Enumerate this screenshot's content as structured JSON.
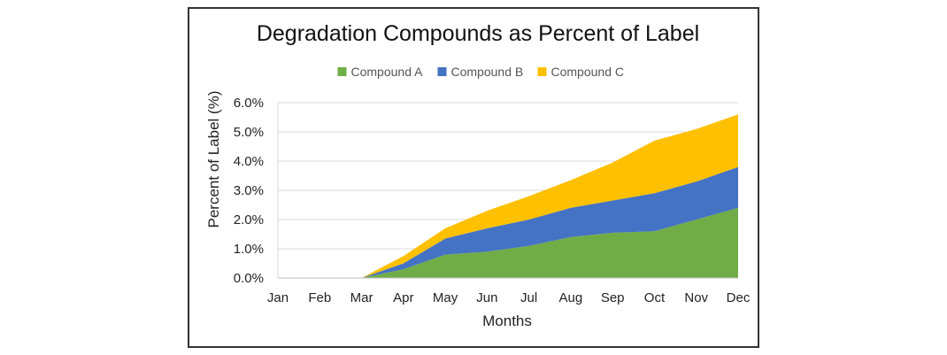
{
  "chart_data": {
    "type": "area",
    "stacked": true,
    "title": "Degradation Compounds as Percent of Label",
    "xlabel": "Months",
    "ylabel": "Percent of Label (%)",
    "categories": [
      "Jan",
      "Feb",
      "Mar",
      "Apr",
      "May",
      "Jun",
      "Jul",
      "Aug",
      "Sep",
      "Oct",
      "Nov",
      "Dec"
    ],
    "yticks": [
      "0.0%",
      "1.0%",
      "2.0%",
      "3.0%",
      "4.0%",
      "5.0%",
      "6.0%"
    ],
    "ylim": [
      0,
      6
    ],
    "legend_position": "top",
    "grid": true,
    "series": [
      {
        "name": "Compound A",
        "color": "#70AD47",
        "values": [
          0,
          0,
          0,
          0.3,
          0.8,
          0.9,
          1.1,
          1.4,
          1.55,
          1.6,
          2.0,
          2.4
        ]
      },
      {
        "name": "Compound B",
        "color": "#4472C4",
        "values": [
          0,
          0,
          0,
          0.2,
          0.55,
          0.8,
          0.9,
          1.0,
          1.1,
          1.3,
          1.3,
          1.4
        ]
      },
      {
        "name": "Compound C",
        "color": "#FFC000",
        "values": [
          0,
          0,
          0,
          0.25,
          0.35,
          0.6,
          0.8,
          0.95,
          1.3,
          1.8,
          1.8,
          1.8
        ]
      }
    ]
  }
}
